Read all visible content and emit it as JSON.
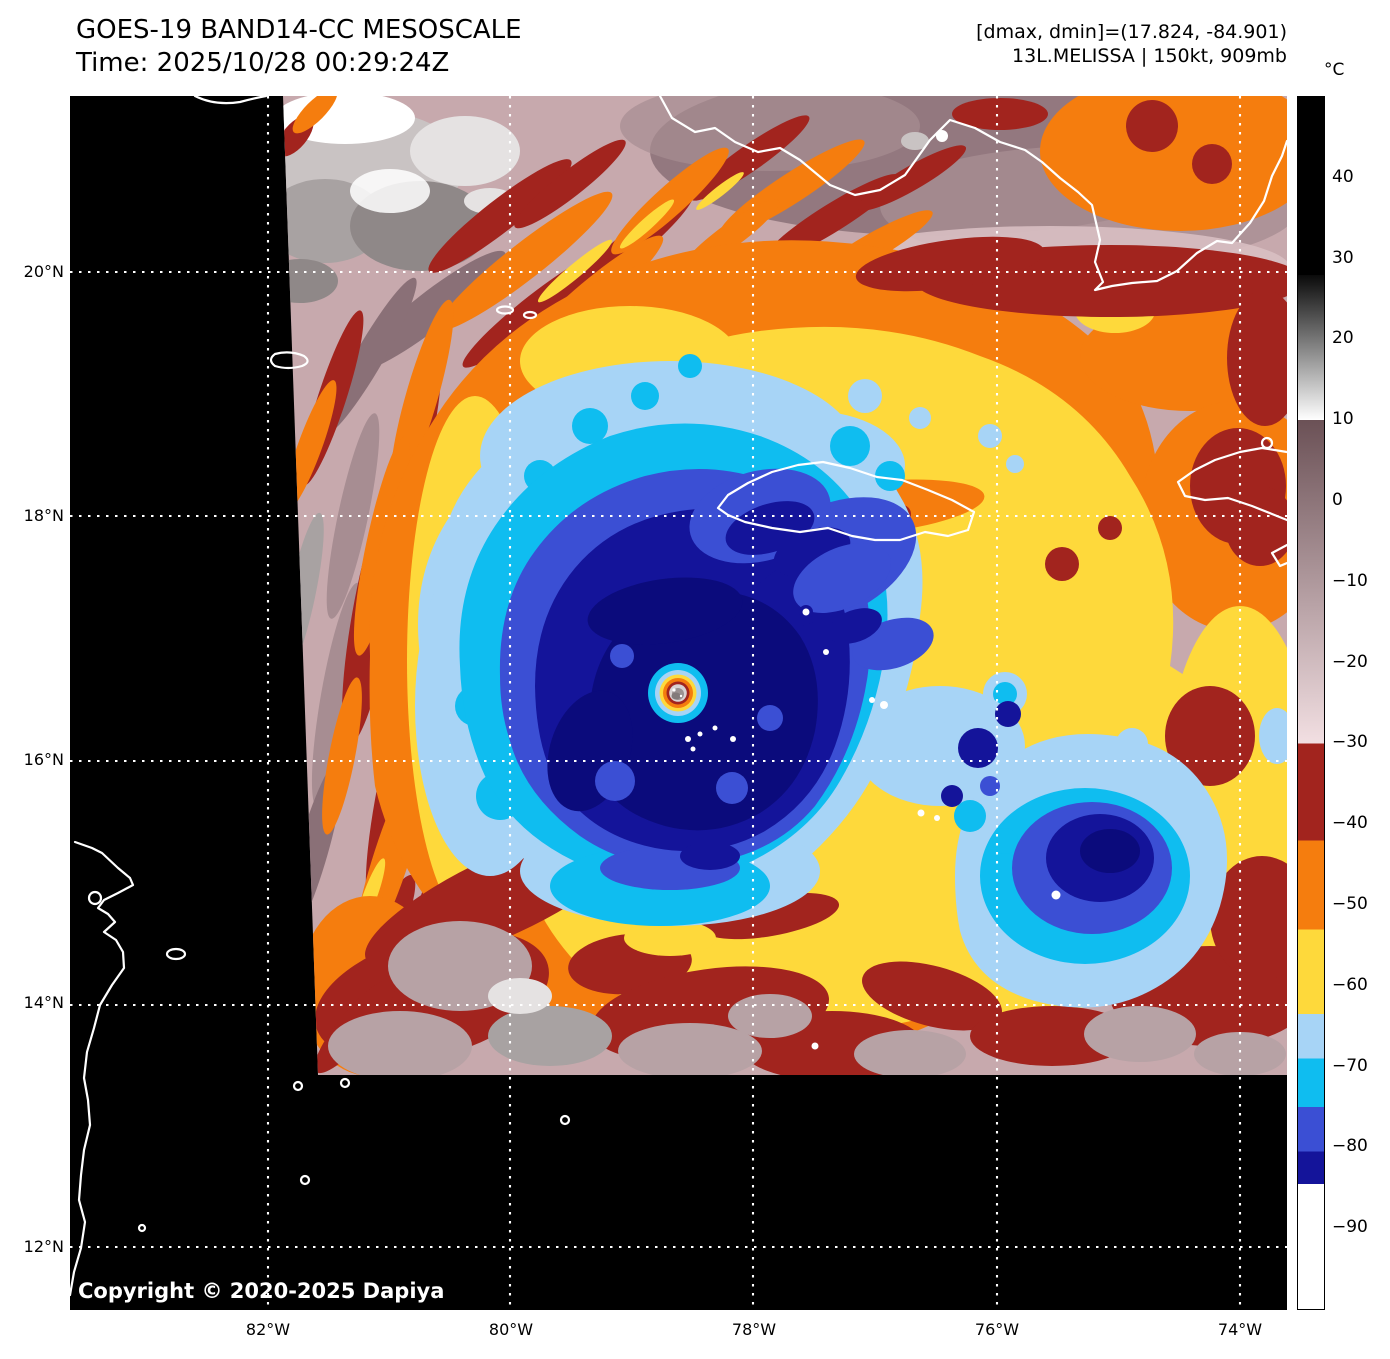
{
  "header": {
    "title": "GOES-19 BAND14-CC MESOSCALE",
    "time_line": "Time: 2025/10/28 00:29:24Z",
    "range_line": "[dmax, dmin]=(17.824, -84.901)",
    "storm_line": "13L.MELISSA | 150kt, 909mb"
  },
  "storm": {
    "id": "13L",
    "name": "MELISSA",
    "intensity": "150kt",
    "pressure": "909mb",
    "dmax": "17.824",
    "dmin": "-84.901"
  },
  "colorbar": {
    "unit_label": "°C",
    "scale_top_value": 50,
    "scale_bottom_value": -100,
    "ticks": [
      {
        "label": "40",
        "value": 40
      },
      {
        "label": "30",
        "value": 30
      },
      {
        "label": "20",
        "value": 20
      },
      {
        "label": "10",
        "value": 10
      },
      {
        "label": "0",
        "value": 0
      },
      {
        "label": "−10",
        "value": -10
      },
      {
        "label": "−20",
        "value": -20
      },
      {
        "label": "−30",
        "value": -30
      },
      {
        "label": "−40",
        "value": -40
      },
      {
        "label": "−50",
        "value": -50
      },
      {
        "label": "−60",
        "value": -60
      },
      {
        "label": "−70",
        "value": -70
      },
      {
        "label": "−80",
        "value": -80
      },
      {
        "label": "−90",
        "value": -90
      }
    ],
    "segments": [
      {
        "from": 50,
        "to": 28,
        "c1": "#000000",
        "c2": "#000000"
      },
      {
        "from": 28,
        "to": 10,
        "c1": "#0a0a0a",
        "c2": "#ffffff"
      },
      {
        "from": 10,
        "to": -30,
        "c1": "#6b5156",
        "c2": "#f2dfe2"
      },
      {
        "from": -30,
        "to": -42,
        "c1": "#a2241e",
        "c2": "#a2241e"
      },
      {
        "from": -42,
        "to": -53,
        "c1": "#f57d0e",
        "c2": "#f57d0e"
      },
      {
        "from": -53,
        "to": -63.5,
        "c1": "#fed93b",
        "c2": "#fed93b"
      },
      {
        "from": -63.5,
        "to": -69,
        "c1": "#a7d4f6",
        "c2": "#a7d4f6"
      },
      {
        "from": -69,
        "to": -75,
        "c1": "#0fbdf0",
        "c2": "#0fbdf0"
      },
      {
        "from": -75,
        "to": -80.5,
        "c1": "#3b4fd4",
        "c2": "#3b4fd4"
      },
      {
        "from": -80.5,
        "to": -84.5,
        "c1": "#14149a",
        "c2": "#14149a"
      },
      {
        "from": -84.5,
        "to": -100,
        "c1": "#ffffff",
        "c2": "#ffffff"
      }
    ]
  },
  "map": {
    "lat_ticks": [
      {
        "label": "20°N",
        "deg": 20
      },
      {
        "label": "18°N",
        "deg": 18
      },
      {
        "label": "16°N",
        "deg": 16
      },
      {
        "label": "14°N",
        "deg": 14
      },
      {
        "label": "12°N",
        "deg": 12
      }
    ],
    "lon_ticks": [
      {
        "label": "82°W",
        "deg": 82
      },
      {
        "label": "80°W",
        "deg": 80
      },
      {
        "label": "78°W",
        "deg": 78
      },
      {
        "label": "76°W",
        "deg": 76
      },
      {
        "label": "74°W",
        "deg": 74
      }
    ],
    "copyright": "Copyright © 2020-2025 Dapiya"
  },
  "palette": {
    "mauve": "#c7a9ad",
    "mauve2": "#d8bfc2",
    "taupe": "#8a7077",
    "taupe2": "#a78d92",
    "taupe3": "#b7a2a5",
    "grayc": "#c9c3c3",
    "gray2": "#a8a2a2",
    "gray3": "#8f8888",
    "grayl": "#e5e2e2",
    "maroon": "#a2241e",
    "orange": "#f57d0e",
    "yellow": "#fed93b",
    "lightblue": "#a7d4f6",
    "cyan": "#0fbdf0",
    "royal": "#3b4fd4",
    "navy": "#14149a",
    "navydark": "#0b0b7c",
    "eyesilver": "#d8d2d2",
    "eyegray": "#9a9191"
  }
}
